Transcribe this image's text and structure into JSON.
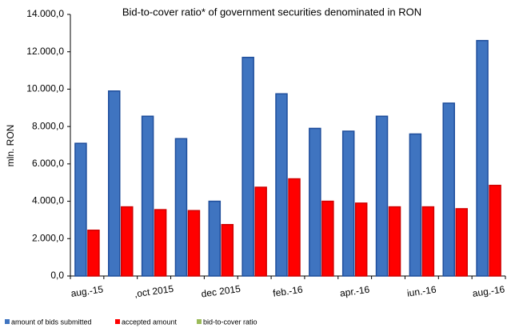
{
  "chart_data": {
    "type": "bar",
    "title": "Bid-to-cover ratio* of government securities denominated in RON",
    "y_label": "mln. RON",
    "categories": [
      "aug.-15",
      null,
      ",oct 2015",
      null,
      "dec 2015",
      null,
      "feb.-16",
      null,
      "apr.-16",
      null,
      "iun.-16",
      null,
      "aug.-16"
    ],
    "series": [
      {
        "name": "amount of bids submitted",
        "color": "#3f74c0",
        "values": [
          7100,
          9900,
          8550,
          7350,
          4000,
          11700,
          9750,
          7900,
          7750,
          8550,
          7600,
          9250,
          12600
        ]
      },
      {
        "name": "accepted amount",
        "color": "#ff0000",
        "values": [
          2450,
          3700,
          3550,
          3500,
          2750,
          4750,
          5200,
          4000,
          3900,
          3700,
          3700,
          3600,
          4850
        ]
      },
      {
        "name": "bid-to-cover ratio",
        "color": "#9bbb59",
        "type": "line",
        "values": [
          null,
          null,
          null,
          null,
          null,
          null,
          null,
          null,
          null,
          null,
          null,
          null,
          null
        ]
      }
    ],
    "ylim": [
      0,
      14000
    ],
    "yticks": [
      {
        "value": 0,
        "label": "0,0"
      },
      {
        "value": 2000,
        "label": "2.000,0"
      },
      {
        "value": 4000,
        "label": "4.000,0"
      },
      {
        "value": 6000,
        "label": "6.000,0"
      },
      {
        "value": 8000,
        "label": "8.000,0"
      },
      {
        "value": 10000,
        "label": "10.000,0"
      },
      {
        "value": 12000,
        "label": "12.000,0"
      },
      {
        "value": 14000,
        "label": "14.000,0"
      }
    ],
    "grid": false
  }
}
